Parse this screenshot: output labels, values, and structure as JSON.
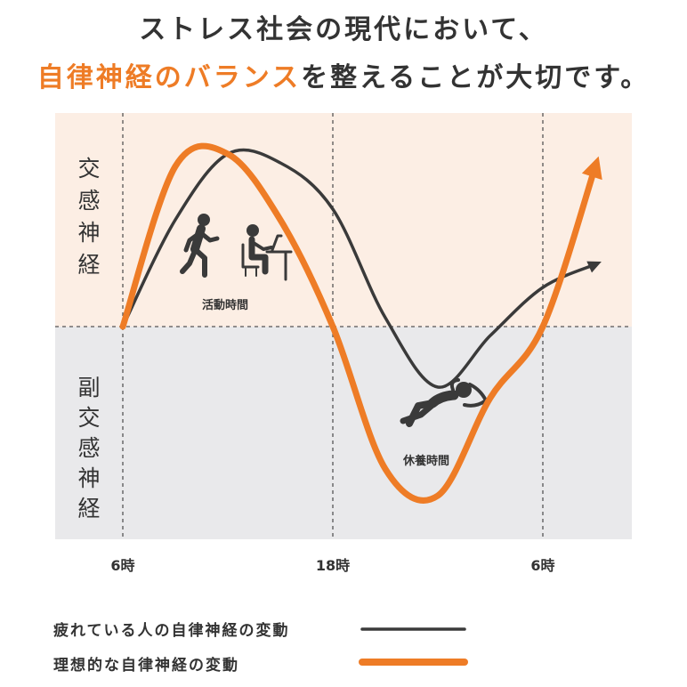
{
  "heading": {
    "line1": "ストレス社会の現代において、",
    "line2_accent": "自律神経のバランス",
    "line2_rest": "を整えることが大切です。"
  },
  "colors": {
    "accent": "#EE7C26",
    "tired": "#3A3A3A",
    "sympathetic_bg": "#FCEEE4",
    "parasympathetic_bg": "#E9E9EB",
    "text": "#333333"
  },
  "icons": [
    "running-person-icon",
    "desk-worker-icon",
    "sleeping-person-icon"
  ],
  "chart_data": {
    "type": "line",
    "title": "",
    "xlabel": "",
    "ylabel": "",
    "x_ticks": [
      "6時",
      "18時",
      "6時"
    ],
    "y_regions": [
      {
        "label": "交感神経",
        "chars": [
          "交",
          "感",
          "神",
          "経"
        ],
        "side": "above-baseline"
      },
      {
        "label": "副交感神経",
        "chars": [
          "副",
          "交",
          "感",
          "神",
          "経"
        ],
        "side": "below-baseline"
      }
    ],
    "annotations": [
      "活動時間",
      "休養時間"
    ],
    "grid": "vertical dashed lines at ticks and one dashed line at each end; horizontal dashed baseline",
    "ylim": [
      -1,
      1
    ],
    "series": [
      {
        "name": "疲れている人の自律神経の変動",
        "color": "#3A3A3A",
        "x": [
          6,
          9,
          12,
          15,
          18,
          21,
          24,
          27,
          30,
          33
        ],
        "y": [
          0.0,
          0.6,
          0.97,
          0.92,
          0.66,
          0.05,
          -0.34,
          -0.05,
          0.22,
          0.35
        ]
      },
      {
        "name": "理想的な自律神経の変動",
        "color": "#EE7C26",
        "x": [
          6,
          9,
          12,
          15,
          18,
          21,
          24,
          27,
          30,
          33
        ],
        "y": [
          0.0,
          0.9,
          0.97,
          0.6,
          0.0,
          -0.8,
          -0.95,
          -0.4,
          0.0,
          0.9
        ]
      }
    ]
  }
}
